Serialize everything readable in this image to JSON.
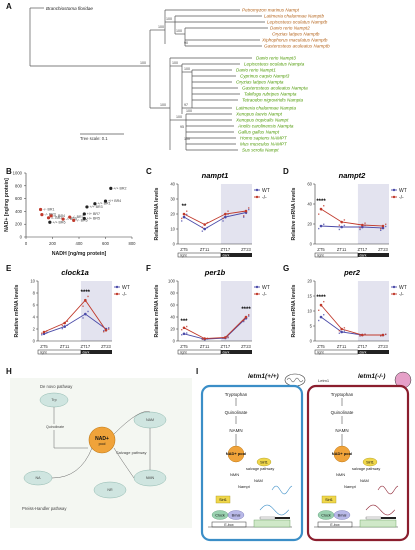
{
  "figure": {
    "panels": {
      "A": "A",
      "B": "B",
      "C": "C",
      "D": "D",
      "E": "E",
      "F": "F",
      "G": "G",
      "H": "H",
      "I": "I"
    }
  },
  "tree": {
    "outgroup": "Branchiostoma floridae",
    "scale_label": "Tree scale: 0.1",
    "bootstrap": [
      "100",
      "100",
      "100",
      "100",
      "90",
      "100",
      "100",
      "100",
      "97",
      "100",
      "95",
      "100",
      "100"
    ],
    "colors": {
      "nampt_a": "#b5651d",
      "nampt_b": "#4e9a06",
      "tree": "#555555"
    },
    "group_a": [
      "Petromyzon marinus Nampt",
      "Latimeria chalumnae Namptb",
      "Lepisosteus oculatus Namptb",
      "Danio rerio Nampt2",
      "Oryzias latipes Namptb",
      "Xiphophorus maculatus Namptb",
      "Gasterosteus aculeatus Namptb"
    ],
    "group_b": [
      "Danio rerio Nampt3",
      "Lepisosteus oculatus Nampta",
      "Danio rerio Nampt1",
      "Cyprinus carpio Nampt3",
      "Oryzias latipes Nampta",
      "Gasterosteus aculeatus Nampta",
      "Takifugu rubripes Nampta",
      "Tetraodon nigroviridis Nampta",
      "Latimeria chalumnae Nampta",
      "Xenopus laevis Nampt",
      "Xenopus tropicalis Nampt",
      "Anolis carolinensis Nampta",
      "Gallus gallus Nampt",
      "Homo sapiens NAMPT",
      "Mus musculus NAMPT",
      "Sus scrofa Nampt"
    ]
  },
  "scatter": {
    "chart_data": {
      "type": "scatter",
      "xlabel": "NADH [ng/mg protein]",
      "ylabel": "NAD+ [ng/mg protein]",
      "xlim": [
        0,
        800
      ],
      "ylim": [
        0,
        1000
      ],
      "xticks": [
        "0",
        "200",
        "400",
        "600",
        "800"
      ],
      "yticks": [
        "0",
        "200",
        "400",
        "600",
        "800",
        "1000"
      ],
      "series": [
        {
          "name": "+/+",
          "color": "#222222",
          "points": [
            {
              "x": 520,
              "y": 520,
              "label": "+/+ BR1"
            },
            {
              "x": 640,
              "y": 760,
              "label": "+/+ BR2"
            },
            {
              "x": 460,
              "y": 470,
              "label": "+/+ BR3"
            },
            {
              "x": 600,
              "y": 560,
              "label": "+/+ BR4"
            },
            {
              "x": 440,
              "y": 290,
              "label": "+/+ BR5"
            },
            {
              "x": 180,
              "y": 230,
              "label": "+/+ BR6"
            },
            {
              "x": 440,
              "y": 360,
              "label": "+/+ BR7"
            }
          ]
        },
        {
          "name": "-/-",
          "color": "#c0392b",
          "points": [
            {
              "x": 110,
              "y": 430,
              "label": "-/- BR1"
            },
            {
              "x": 120,
              "y": 350,
              "label": "-/- BR2"
            },
            {
              "x": 170,
              "y": 300,
              "label": "-/- BR3"
            },
            {
              "x": 190,
              "y": 330,
              "label": "-/- BR4"
            },
            {
              "x": 280,
              "y": 280,
              "label": "-/- BR5"
            },
            {
              "x": 360,
              "y": 260,
              "label": "-/- BR6"
            },
            {
              "x": 330,
              "y": 310,
              "label": "-/- BR7"
            }
          ]
        }
      ]
    }
  },
  "expression": {
    "ylabel": "Relative mRNA levels",
    "categories": [
      "ZT5",
      "ZT11",
      "ZT17",
      "ZT23"
    ],
    "bar": {
      "light": "light",
      "dark": "dark"
    },
    "legend": {
      "wt": "WT",
      "ko": "-/-"
    },
    "colors": {
      "wt": "#4a4aa8",
      "ko": "#c0392b",
      "shade": "#e3e3ef"
    },
    "charts": [
      {
        "panel": "C",
        "title": "nampt1",
        "yticks": [
          "0",
          "10",
          "20",
          "30",
          "40"
        ],
        "ylim": [
          0,
          40
        ],
        "series": [
          {
            "name": "WT",
            "values": [
              18,
              10,
              18,
              21
            ]
          },
          {
            "name": "-/-",
            "values": [
              20,
              13,
              20,
              22
            ]
          }
        ],
        "stars": "**",
        "star_index": 0
      },
      {
        "panel": "D",
        "title": "nampt2",
        "yticks": [
          "0",
          "20",
          "40",
          "60"
        ],
        "ylim": [
          0,
          60
        ],
        "series": [
          {
            "name": "WT",
            "values": [
              18,
              17,
              17,
              16
            ]
          },
          {
            "name": "-/-",
            "values": [
              35,
              22,
              19,
              18
            ]
          }
        ],
        "stars": "****",
        "star_index": 0
      },
      {
        "panel": "E",
        "title": "clock1a",
        "yticks": [
          "0",
          "2",
          "4",
          "6",
          "8",
          "10"
        ],
        "ylim": [
          0,
          10
        ],
        "series": [
          {
            "name": "WT",
            "values": [
              1.2,
              2.4,
              4.5,
              2
            ]
          },
          {
            "name": "-/-",
            "values": [
              1.5,
              3,
              6.8,
              1.8
            ]
          }
        ],
        "stars": "****",
        "star_index": 2
      },
      {
        "panel": "F",
        "title": "per1b",
        "yticks": [
          "0",
          "20",
          "40",
          "60",
          "80",
          "100"
        ],
        "ylim": [
          0,
          100
        ],
        "series": [
          {
            "name": "WT",
            "values": [
              12,
              3,
              5,
              38
            ]
          },
          {
            "name": "-/-",
            "values": [
              22,
              4,
              6,
              40
            ]
          }
        ],
        "stars": "****",
        "star_index": 3,
        "stars2": "***",
        "star2_index": 0
      },
      {
        "panel": "G",
        "title": "per2",
        "yticks": [
          "0",
          "5",
          "10",
          "15",
          "20"
        ],
        "ylim": [
          0,
          20
        ],
        "series": [
          {
            "name": "WT",
            "values": [
              8,
              3,
              2,
              2
            ]
          },
          {
            "name": "-/-",
            "values": [
              12,
              4,
              2,
              2
            ]
          }
        ],
        "stars": "****",
        "star_index": 0
      }
    ]
  },
  "pathway": {
    "de_novo": "De novo pathway",
    "tryptophan": "Trp\nTryptophan",
    "quinolinate": "Quinolinate",
    "nad_center": "NAD+\npool",
    "salvage": "Salvage pathway",
    "nam": "NAM\nNicotinamide",
    "nr": "NR\nNicotinamide riboside",
    "nmn": "NMN\nNicotinamide mononucleotide",
    "na": "NA\nNicotinic acid",
    "preiss": "Preiss-Handler pathway"
  },
  "model": {
    "wt_title": "letm1(+/+)",
    "ko_title": "letm1(-/-)",
    "letm1": "Letm1",
    "wt_color": "#3b8ec7",
    "ko_color": "#8b1e2e",
    "steps": [
      "Tryptophan",
      "Quinolinate",
      "NAMN",
      "NAD+ pool",
      "salvage pathway",
      "NMN",
      "NAM",
      "Nampt",
      "Sirt1",
      "Clock",
      "Bmal",
      "E-box"
    ]
  }
}
